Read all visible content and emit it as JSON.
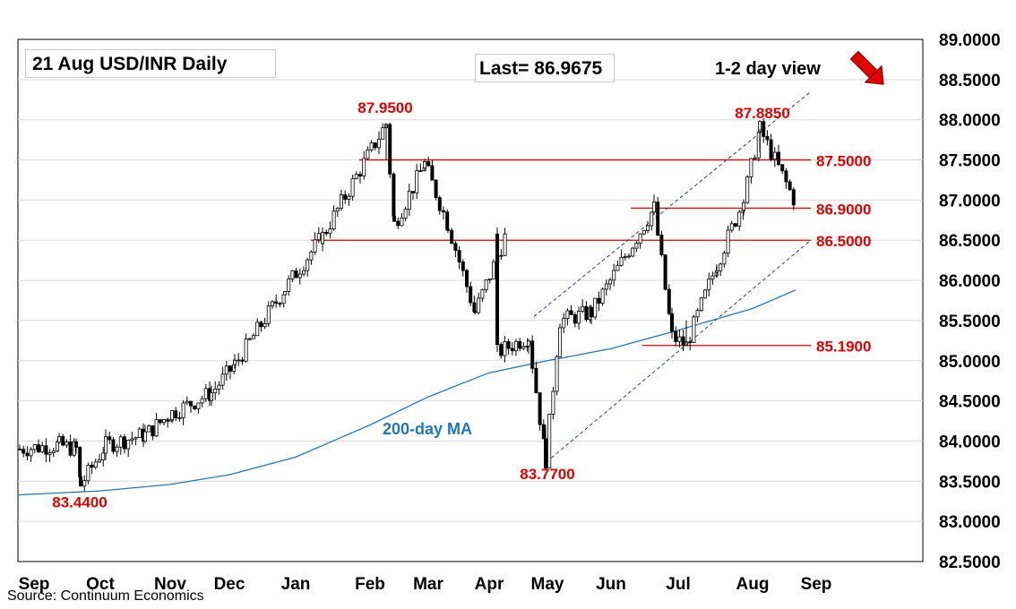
{
  "chart_data": {
    "type": "candlestick",
    "title": "21 Aug  USD/INR  Daily",
    "last_label": "Last= 86.9675",
    "view_label": "1-2 day view",
    "view_direction": "down",
    "source": "Source: Continuum Economics",
    "ylim": [
      82.5,
      89.0
    ],
    "yticks": [
      "89.0000",
      "88.5000",
      "88.0000",
      "87.5000",
      "87.0000",
      "86.5000",
      "86.0000",
      "85.5000",
      "85.0000",
      "84.5000",
      "84.0000",
      "83.5000",
      "83.0000",
      "82.5000"
    ],
    "xticks": [
      "Sep",
      "Oct",
      "Nov",
      "Dec",
      "Jan",
      "Feb",
      "Mar",
      "Apr",
      "May",
      "Jun",
      "Jul",
      "Aug",
      "Sep"
    ],
    "grid": true,
    "colors": {
      "up": "#ffffff",
      "down": "#000000",
      "ma": "#1f77b4",
      "levels": "#e00000",
      "channel": "#2a3a8a",
      "arrow": "#e00000"
    },
    "ma_label": "200-day MA",
    "moving_average_200": [
      {
        "date": "Sep",
        "value": 83.33
      },
      {
        "date": "Oct",
        "value": 83.38
      },
      {
        "date": "Nov",
        "value": 83.46
      },
      {
        "date": "Dec",
        "value": 83.58
      },
      {
        "date": "Jan",
        "value": 83.8
      },
      {
        "date": "Feb",
        "value": 84.2
      },
      {
        "date": "Mar",
        "value": 84.55
      },
      {
        "date": "Apr",
        "value": 84.85
      },
      {
        "date": "May",
        "value": 85.0
      },
      {
        "date": "Jun",
        "value": 85.15
      },
      {
        "date": "Jul",
        "value": 85.38
      },
      {
        "date": "Aug",
        "value": 85.65
      },
      {
        "date": "Aug",
        "value": 85.88
      }
    ],
    "resistance_support_levels": [
      "87.5000",
      "86.9000",
      "86.5000",
      "85.1900"
    ],
    "annotations": [
      "87.9500",
      "87.8850",
      "83.7700",
      "83.4400"
    ],
    "series_anchor_points": [
      {
        "date": "Sep",
        "value": 83.9
      },
      {
        "date": "Sep",
        "value": 83.95
      },
      {
        "date": "Oct",
        "value": 83.9
      },
      {
        "date": "Oct",
        "value": 83.45
      },
      {
        "date": "Oct",
        "value": 83.95
      },
      {
        "date": "Nov",
        "value": 84.08
      },
      {
        "date": "Nov",
        "value": 84.35
      },
      {
        "date": "Dec",
        "value": 84.6
      },
      {
        "date": "Dec",
        "value": 84.95
      },
      {
        "date": "Jan",
        "value": 85.9
      },
      {
        "date": "Jan",
        "value": 86.55
      },
      {
        "date": "Feb",
        "value": 87.95
      },
      {
        "date": "Feb",
        "value": 86.7
      },
      {
        "date": "Mar",
        "value": 87.45
      },
      {
        "date": "Mar",
        "value": 86.7
      },
      {
        "date": "Apr",
        "value": 85.6
      },
      {
        "date": "Apr",
        "value": 86.6
      },
      {
        "date": "Apr",
        "value": 85.1
      },
      {
        "date": "May",
        "value": 85.3
      },
      {
        "date": "May",
        "value": 83.77
      },
      {
        "date": "May",
        "value": 85.5
      },
      {
        "date": "Jun",
        "value": 85.6
      },
      {
        "date": "Jun",
        "value": 86.9
      },
      {
        "date": "Jul",
        "value": 85.3
      },
      {
        "date": "Jul",
        "value": 85.19
      },
      {
        "date": "Jul",
        "value": 86.2
      },
      {
        "date": "Aug",
        "value": 87.0
      },
      {
        "date": "Aug",
        "value": 87.885
      },
      {
        "date": "Aug",
        "value": 86.9675
      }
    ]
  }
}
